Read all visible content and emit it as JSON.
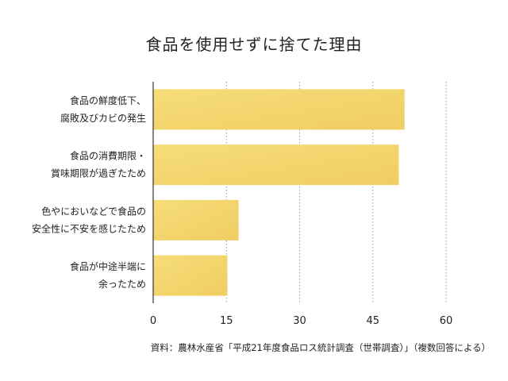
{
  "chart_data": {
    "type": "bar",
    "orientation": "horizontal",
    "title": "食品を使用せずに捨てた理由",
    "categories": [
      [
        "食品の鮮度低下、",
        "腐敗及びカビの発生"
      ],
      [
        "食品の消費期限・",
        "賞味期限が過ぎたため"
      ],
      [
        "色やにおいなどで食品の",
        "安全性に不安を感じたため"
      ],
      [
        "食品が中途半端に",
        "余ったため"
      ]
    ],
    "values": [
      51.5,
      50.3,
      17.5,
      15.2
    ],
    "xlim": [
      0,
      60
    ],
    "xticks": [
      0,
      15,
      30,
      45,
      60
    ],
    "xlabel": "",
    "ylabel": "",
    "grid": "vertical dotted",
    "bar_color": "#F3D56E",
    "note": "資料：農林水産省「平成21年度食品ロス統計調査（世帯調査）」（複数回答による）"
  }
}
